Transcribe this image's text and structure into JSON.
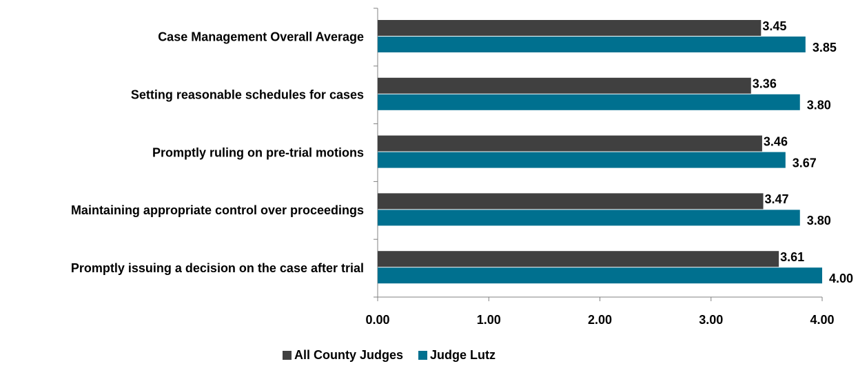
{
  "chart_data": {
    "type": "barh",
    "categories": [
      "Case Management Overall Average",
      "Setting reasonable schedules for cases",
      "Promptly ruling on pre-trial motions",
      "Maintaining appropriate control over proceedings",
      "Promptly issuing a decision on the case after trial"
    ],
    "series": [
      {
        "name": "All County Judges",
        "color": "#404040",
        "values": [
          3.45,
          3.36,
          3.46,
          3.47,
          3.61
        ],
        "value_labels": [
          "3.45",
          "3.36",
          "3.46",
          "3.47",
          "3.61"
        ]
      },
      {
        "name": "Judge Lutz",
        "color": "#00708f",
        "values": [
          3.85,
          3.8,
          3.67,
          3.8,
          4.0
        ],
        "value_labels": [
          "3.85",
          "3.80",
          "3.67",
          "3.80",
          "4.00"
        ]
      }
    ],
    "xlim": [
      0,
      4
    ],
    "xticks": [
      {
        "value": 0,
        "label": "0.00"
      },
      {
        "value": 1,
        "label": "1.00"
      },
      {
        "value": 2,
        "label": "2.00"
      },
      {
        "value": 3,
        "label": "3.00"
      },
      {
        "value": 4,
        "label": "4.00"
      }
    ],
    "legend": "bottom"
  }
}
